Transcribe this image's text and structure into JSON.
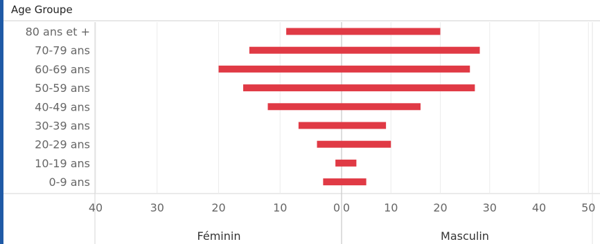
{
  "row_header": "Age Groupe",
  "chart_data": {
    "type": "bar",
    "orientation": "horizontal",
    "categories": [
      "80 ans et +",
      "70-79 ans",
      "60-69 ans",
      "50-59 ans",
      "40-49 ans",
      "30-39 ans",
      "20-29 ans",
      "10-19 ans",
      "0-9 ans"
    ],
    "panels": [
      {
        "name": "Féminin",
        "direction": "reversed",
        "xlim": [
          0,
          40
        ],
        "ticks": [
          "40",
          "30",
          "20",
          "10",
          "0"
        ],
        "values": [
          9,
          15,
          20,
          16,
          12,
          7,
          4,
          1,
          3
        ]
      },
      {
        "name": "Masculin",
        "direction": "normal",
        "xlim": [
          0,
          50
        ],
        "ticks": [
          "0",
          "10",
          "20",
          "30",
          "40",
          "50"
        ],
        "values": [
          20,
          28,
          26,
          27,
          16,
          9,
          10,
          3,
          5
        ]
      }
    ],
    "bar_color": "#e03a45",
    "grid": true
  }
}
